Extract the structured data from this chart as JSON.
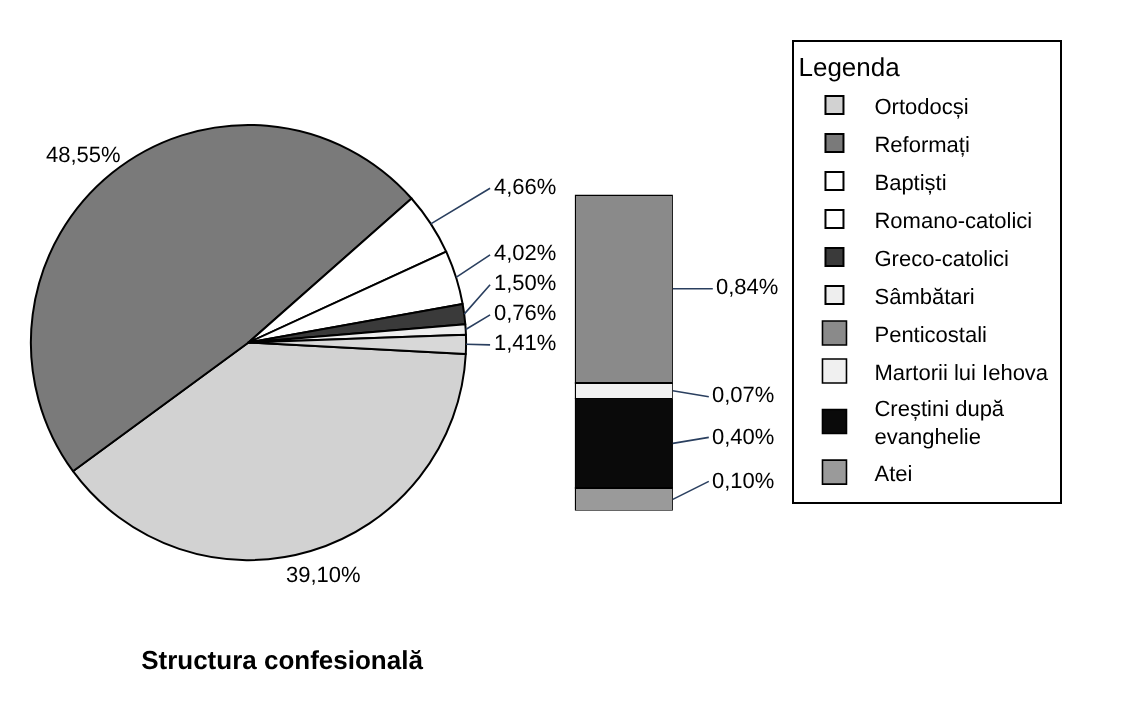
{
  "chart_data": [
    {
      "type": "pie",
      "title": "Structura confesională",
      "legend_title": "Legenda",
      "legend": "right",
      "categories": [
        "Ortodocși",
        "Reformați",
        "Baptiști",
        "Romano-catolici",
        "Greco-catolici",
        "Sâmbătari",
        null
      ],
      "values": [
        39.1,
        48.55,
        4.66,
        4.02,
        1.5,
        0.76,
        1.41
      ],
      "value_labels": [
        "39,10%",
        "48,55%",
        "4,66%",
        "4,02%",
        "1,50%",
        "0,76%",
        "1,41%"
      ],
      "colors": [
        "#d2d2d2",
        "#7a7a7a",
        "#ffffff",
        "#ffffff",
        "#3a3a3a",
        "#eeeeee",
        "#d8d8d8"
      ]
    },
    {
      "type": "bar",
      "stacked": true,
      "legend": "right",
      "categories": [
        null
      ],
      "series": [
        {
          "name": "Atei",
          "color": "#9a9a9a",
          "values": [
            0.1
          ],
          "value_labels": [
            "0,10%"
          ]
        },
        {
          "name": "Creștini după evanghelie",
          "color": "#0a0a0a",
          "values": [
            0.4
          ],
          "value_labels": [
            "0,40%"
          ]
        },
        {
          "name": "Martorii lui Iehova",
          "color": "#f0f0f0",
          "values": [
            0.07
          ],
          "value_labels": [
            "0,07%"
          ]
        },
        {
          "name": "Penticostali",
          "color": "#8a8a8a",
          "values": [
            0.84
          ],
          "value_labels": [
            "0,84%"
          ]
        }
      ]
    }
  ]
}
